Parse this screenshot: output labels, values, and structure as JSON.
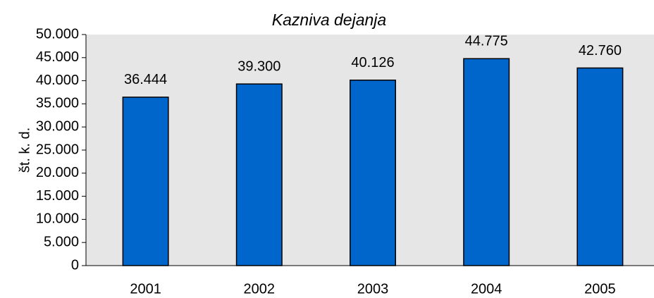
{
  "chart_data": {
    "type": "bar",
    "title": "Kazniva dejanja",
    "y_label": "št. k. d.",
    "categories": [
      "2001",
      "2002",
      "2003",
      "2004",
      "2005"
    ],
    "values": [
      36444,
      39300,
      40126,
      44775,
      42760
    ],
    "value_labels": [
      "36.444",
      "39.300",
      "40.126",
      "44.775",
      "42.760"
    ],
    "color": "#0066cc",
    "ylim": [
      0,
      50000
    ],
    "yticks": [
      0,
      {
        "value": 5000,
        "label": "5.000"
      },
      {
        "value": 10000,
        "label": "10.000"
      },
      {
        "value": 15000,
        "label": "15.000"
      },
      {
        "value": 20000,
        "label": "20.000"
      },
      {
        "value": 25000,
        "label": "25.000"
      },
      {
        "value": 30000,
        "label": "30.000"
      },
      {
        "value": 35000,
        "label": "35.000"
      },
      {
        "value": 40000,
        "label": "40.000"
      },
      {
        "value": 45000,
        "label": "45.000"
      },
      {
        "value": 50000,
        "label": "50.000"
      }
    ],
    "grid": false
  }
}
